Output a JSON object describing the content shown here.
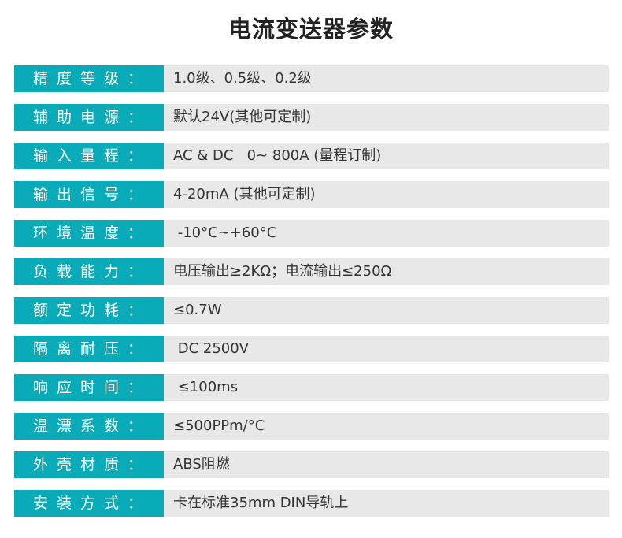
{
  "title": "电流变送器参数",
  "colors": {
    "label_bg": "#0aabb8",
    "value_bg": "#e8e8e8"
  },
  "rows": [
    {
      "label": "精度等级：",
      "value": "1.0级、0.5级、0.2级"
    },
    {
      "label": "辅助电源：",
      "value": "默认24V(其他可定制)"
    },
    {
      "label": "输入量程：",
      "value": "AC & DC   0~ 800A (量程订制)"
    },
    {
      "label": "输出信号：",
      "value": "4-20mA (其他可定制)"
    },
    {
      "label": "环境温度：",
      "value": " -10°C~+60°C"
    },
    {
      "label": "负载能力：",
      "value": "电压输出≥2KΩ；电流输出≤250Ω"
    },
    {
      "label": "额定功耗：",
      "value": "≤0.7W"
    },
    {
      "label": "隔离耐压：",
      "value": " DC 2500V"
    },
    {
      "label": "响应时间：",
      "value": " ≤100ms"
    },
    {
      "label": "温漂系数：",
      "value": "≤500PPm/°C"
    },
    {
      "label": "外壳材质：",
      "value": "ABS阻燃"
    },
    {
      "label": "安装方式：",
      "value": "卡在标准35mm DIN导轨上"
    }
  ]
}
